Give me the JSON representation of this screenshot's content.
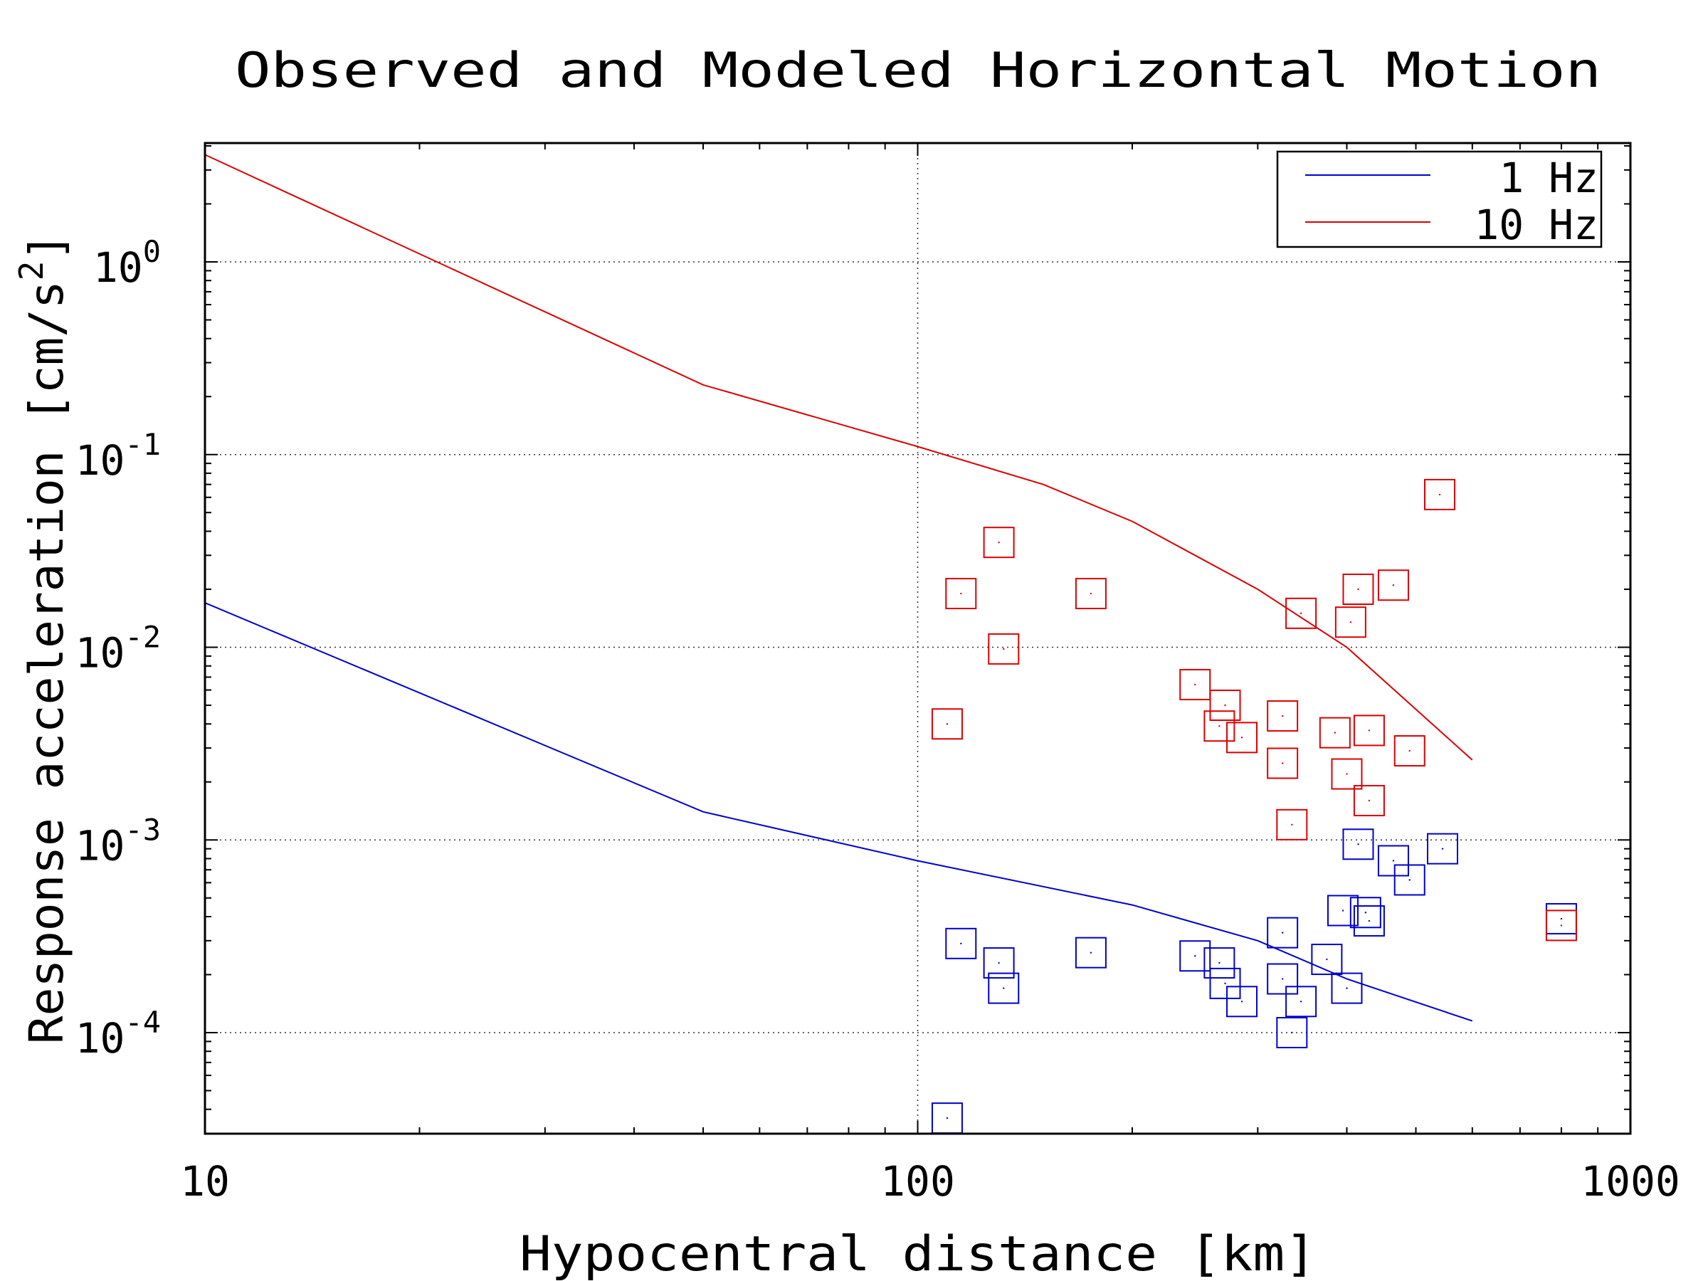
{
  "chart_data": {
    "type": "scatter",
    "title": "Observed and Modeled Horizontal Motion",
    "xlabel": "Hypocentral distance [km]",
    "ylabel_main": "Response acceleration [cm/s",
    "ylabel_sup": "2",
    "ylabel_end": "]",
    "x_scale": "log",
    "y_scale": "log",
    "xlim": [
      10,
      1000
    ],
    "ylim": [
      3e-05,
      4
    ],
    "x_ticks": [
      {
        "value": 10,
        "label": "10"
      },
      {
        "value": 100,
        "label": "100"
      },
      {
        "value": 1000,
        "label": "1000"
      }
    ],
    "y_ticks": [
      {
        "value": 1,
        "base": "10",
        "exp": "0"
      },
      {
        "value": 0.1,
        "base": "10",
        "exp": "-1"
      },
      {
        "value": 0.01,
        "base": "10",
        "exp": "-2"
      },
      {
        "value": 0.001,
        "base": "10",
        "exp": "-3"
      },
      {
        "value": 0.0001,
        "base": "10",
        "exp": "-4"
      }
    ],
    "grid": true,
    "legend_position": "top-right",
    "series": [
      {
        "name": "1 Hz",
        "color": "#0000cc",
        "model": [
          [
            10,
            0.017
          ],
          [
            50,
            0.0014
          ],
          [
            100,
            0.00078
          ],
          [
            200,
            0.00046
          ],
          [
            300,
            0.0003
          ],
          [
            400,
            0.00019
          ],
          [
            600,
            0.000115
          ]
        ],
        "observed": [
          [
            110,
            3.6e-05
          ],
          [
            115,
            0.00029
          ],
          [
            130,
            0.00023
          ],
          [
            132,
            0.00017
          ],
          [
            175,
            0.00026
          ],
          [
            245,
            0.00025
          ],
          [
            265,
            0.00023
          ],
          [
            270,
            0.00018
          ],
          [
            285,
            0.000145
          ],
          [
            325,
            0.00033
          ],
          [
            325,
            0.00019
          ],
          [
            335,
            0.0001
          ],
          [
            345,
            0.000145
          ],
          [
            375,
            0.00024
          ],
          [
            395,
            0.00043
          ],
          [
            400,
            0.00017
          ],
          [
            415,
            0.00095
          ],
          [
            425,
            0.00042
          ],
          [
            430,
            0.00038
          ],
          [
            465,
            0.00078
          ],
          [
            490,
            0.00062
          ],
          [
            545,
            0.0009
          ],
          [
            800,
            0.00039
          ]
        ]
      },
      {
        "name": "10 Hz",
        "color": "#dd0000",
        "model": [
          [
            10,
            3.6
          ],
          [
            50,
            0.23
          ],
          [
            100,
            0.11
          ],
          [
            150,
            0.07
          ],
          [
            200,
            0.045
          ],
          [
            300,
            0.02
          ],
          [
            400,
            0.01
          ],
          [
            600,
            0.0026
          ]
        ],
        "observed": [
          [
            110,
            0.004
          ],
          [
            115,
            0.019
          ],
          [
            130,
            0.035
          ],
          [
            132,
            0.0098
          ],
          [
            175,
            0.019
          ],
          [
            245,
            0.0064
          ],
          [
            265,
            0.0039
          ],
          [
            270,
            0.005
          ],
          [
            285,
            0.0034
          ],
          [
            325,
            0.0044
          ],
          [
            325,
            0.0025
          ],
          [
            335,
            0.0012
          ],
          [
            345,
            0.015
          ],
          [
            385,
            0.0036
          ],
          [
            400,
            0.0022
          ],
          [
            405,
            0.0135
          ],
          [
            415,
            0.02
          ],
          [
            430,
            0.0037
          ],
          [
            430,
            0.0016
          ],
          [
            465,
            0.021
          ],
          [
            490,
            0.0029
          ],
          [
            540,
            0.062
          ],
          [
            800,
            0.00036
          ]
        ]
      }
    ]
  }
}
